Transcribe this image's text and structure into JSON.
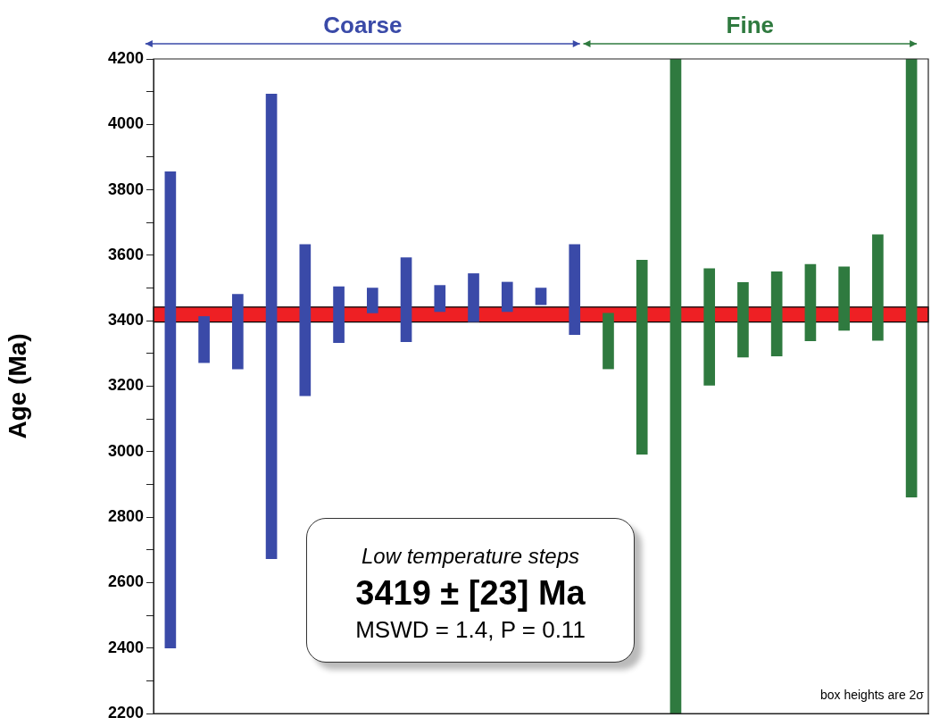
{
  "chart_data": {
    "type": "bar",
    "ylabel": "Age (Ma)",
    "categories": [
      null,
      null,
      null,
      null,
      null,
      null,
      null,
      null,
      null,
      null,
      null,
      null,
      null,
      null,
      null,
      null,
      null,
      null,
      null,
      null,
      null,
      null,
      null
    ],
    "series": [
      {
        "name": "Coarse",
        "color": "#3a4aa8",
        "values": [
          1455,
          141,
          228,
          1420,
          462,
          171,
          76,
          257,
          80,
          147,
          90,
          51,
          275,
          null,
          null,
          null,
          null,
          null,
          null,
          null,
          null,
          null,
          null
        ],
        "base": [
          2400,
          3272,
          3253,
          2673,
          3171,
          3333,
          3424,
          3336,
          3428,
          3397,
          3428,
          3449,
          3358,
          null,
          null,
          null,
          null,
          null,
          null,
          null,
          null,
          null,
          null
        ]
      },
      {
        "name": "Fine",
        "color": "#2f7a3f",
        "values": [
          null,
          null,
          null,
          null,
          null,
          null,
          null,
          null,
          null,
          null,
          null,
          null,
          null,
          170,
          593,
          2000,
          356,
          228,
          258,
          233,
          194,
          323,
          1339
        ],
        "base": [
          null,
          null,
          null,
          null,
          null,
          null,
          null,
          null,
          null,
          null,
          null,
          null,
          null,
          3253,
          2992,
          2200,
          3203,
          3289,
          3292,
          3339,
          3371,
          3340,
          2861
        ]
      }
    ],
    "bands": [
      {
        "axis": "y",
        "from": 3396,
        "to": 3442,
        "color": "#ee2024"
      }
    ],
    "ylim": [
      2200,
      4200
    ],
    "yticks": [
      2200,
      {
        "value": 2300,
        "label": null
      },
      2400,
      {
        "value": 2500,
        "label": null
      },
      2600,
      {
        "value": 2700,
        "label": null
      },
      2800,
      {
        "value": 2900,
        "label": null
      },
      3000,
      {
        "value": 3100,
        "label": null
      },
      3200,
      {
        "value": 3300,
        "label": null
      },
      3400,
      {
        "value": 3500,
        "label": null
      },
      3600,
      {
        "value": 3700,
        "label": null
      },
      3800,
      {
        "value": 3900,
        "label": null
      },
      4000,
      {
        "value": 4100,
        "label": null
      },
      4200
    ],
    "annotations": [
      "Low temperature steps",
      "3419 ± [23] Ma",
      "MSWD = 1.4, P = 0.11",
      "box heights are 2σ"
    ],
    "legend": false,
    "grid": false
  }
}
